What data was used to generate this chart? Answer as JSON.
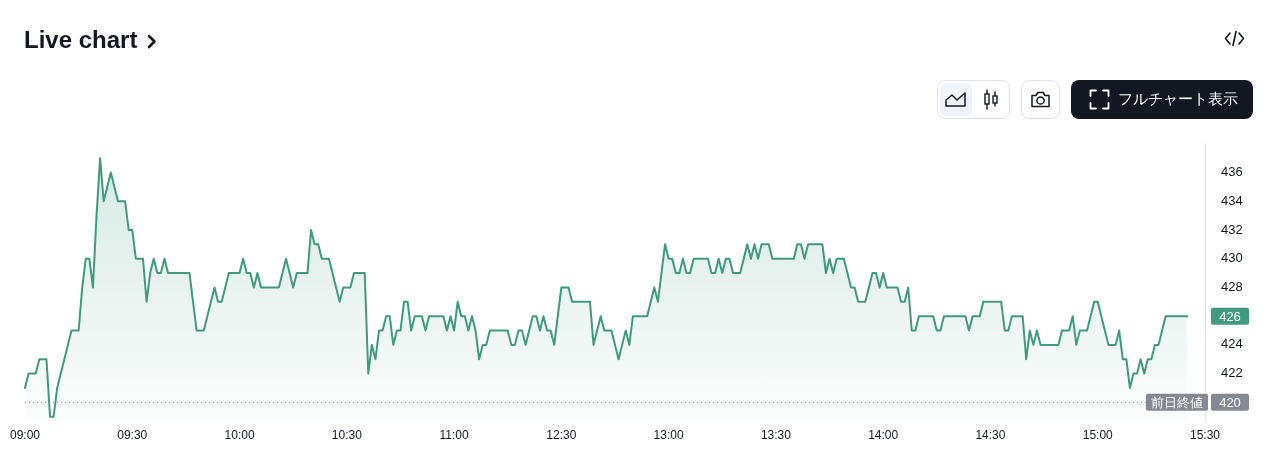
{
  "chart_data": {
    "type": "area",
    "title": "Live chart",
    "marker": "none",
    "color": "#3f9a7e",
    "categories": [
      "09:00",
      null,
      null,
      null,
      null,
      null,
      null,
      null,
      null,
      null,
      null,
      null,
      null,
      null,
      null,
      null,
      null,
      null,
      null,
      null,
      null,
      null,
      null,
      null,
      null,
      null,
      null,
      null,
      null,
      null,
      "09:30",
      null,
      null,
      null,
      null,
      null,
      null,
      null,
      null,
      null,
      null,
      null,
      null,
      null,
      null,
      null,
      null,
      null,
      null,
      null,
      null,
      null,
      null,
      null,
      null,
      null,
      null,
      null,
      null,
      null,
      "10:00",
      null,
      null,
      null,
      null,
      null,
      null,
      null,
      null,
      null,
      null,
      null,
      null,
      null,
      null,
      null,
      null,
      null,
      null,
      null,
      null,
      null,
      null,
      null,
      null,
      null,
      null,
      null,
      null,
      null,
      "10:30",
      null,
      null,
      null,
      null,
      null,
      null,
      null,
      null,
      null,
      null,
      null,
      null,
      null,
      null,
      null,
      null,
      null,
      null,
      null,
      null,
      null,
      null,
      null,
      null,
      null,
      null,
      null,
      null,
      null,
      "11:00",
      null,
      null,
      null,
      null,
      null,
      null,
      null,
      null,
      null,
      null,
      null,
      null,
      null,
      null,
      null,
      null,
      null,
      null,
      null,
      null,
      null,
      null,
      null,
      null,
      null,
      null,
      null,
      null,
      null,
      "12:30",
      null,
      null,
      null,
      null,
      null,
      null,
      null,
      null,
      null,
      null,
      null,
      null,
      null,
      null,
      null,
      null,
      null,
      null,
      null,
      null,
      null,
      null,
      null,
      null,
      null,
      null,
      null,
      null,
      null,
      "13:00",
      null,
      null,
      null,
      null,
      null,
      null,
      null,
      null,
      null,
      null,
      null,
      null,
      null,
      null,
      null,
      null,
      null,
      null,
      null,
      null,
      null,
      null,
      null,
      null,
      null,
      null,
      null,
      null,
      null,
      "13:30",
      null,
      null,
      null,
      null,
      null,
      null,
      null,
      null,
      null,
      null,
      null,
      null,
      null,
      null,
      null,
      null,
      null,
      null,
      null,
      null,
      null,
      null,
      null,
      null,
      null,
      null,
      null,
      null,
      null,
      "14:00",
      null,
      null,
      null,
      null,
      null,
      null,
      null,
      null,
      null,
      null,
      null,
      null,
      null,
      null,
      null,
      null,
      null,
      null,
      null,
      null,
      null,
      null,
      null,
      null,
      null,
      null,
      null,
      null,
      null,
      "14:30",
      null,
      null,
      null,
      null,
      null,
      null,
      null,
      null,
      null,
      null,
      null,
      null,
      null,
      null,
      null,
      null,
      null,
      null,
      null,
      null,
      null,
      null,
      null,
      null,
      null,
      null,
      null,
      null,
      null,
      "15:00",
      null,
      null,
      null,
      null,
      null,
      null,
      null,
      null,
      null,
      null,
      null,
      null,
      null,
      null,
      null,
      null,
      null,
      null,
      null,
      null,
      null,
      null,
      null,
      null,
      null,
      null,
      null,
      null,
      null,
      "15:30"
    ],
    "values": [
      421,
      422,
      422,
      422,
      423,
      423,
      423,
      419,
      419,
      421,
      422,
      423,
      424,
      425,
      425,
      425,
      428,
      430,
      430,
      428,
      433,
      437,
      434,
      435,
      436,
      435,
      434,
      434,
      434,
      432,
      432,
      430,
      430,
      430,
      427,
      429,
      430,
      429,
      429,
      430,
      429,
      429,
      429,
      429,
      429,
      429,
      429,
      427,
      425,
      425,
      425,
      426,
      427,
      428,
      427,
      427,
      428,
      429,
      429,
      429,
      429,
      430,
      429,
      429,
      428,
      429,
      428,
      428,
      428,
      428,
      428,
      428,
      429,
      430,
      429,
      428,
      429,
      429,
      429,
      429,
      432,
      431,
      431,
      430,
      430,
      430,
      429,
      428,
      427,
      428,
      428,
      428,
      429,
      429,
      429,
      429,
      422,
      424,
      423,
      425,
      425,
      426,
      426,
      424,
      425,
      425,
      427,
      427,
      425,
      426,
      426,
      426,
      425,
      426,
      426,
      426,
      426,
      426,
      425,
      426,
      425,
      427,
      426,
      426,
      425,
      426,
      425,
      423,
      424,
      424,
      425,
      425,
      425,
      425,
      425,
      425,
      424,
      424,
      425,
      425,
      424,
      425,
      426,
      426,
      425,
      426,
      425,
      425,
      424,
      426,
      428,
      428,
      428,
      427,
      427,
      427,
      427,
      427,
      427,
      424,
      425,
      426,
      425,
      425,
      425,
      424,
      423,
      424,
      425,
      424,
      426,
      426,
      426,
      426,
      426,
      427,
      428,
      427,
      429,
      431,
      430,
      430,
      429,
      429,
      430,
      429,
      429,
      430,
      430,
      430,
      430,
      430,
      429,
      429,
      430,
      429,
      430,
      430,
      429,
      429,
      429,
      430,
      431,
      430,
      431,
      430,
      431,
      431,
      431,
      430,
      430,
      430,
      430,
      430,
      430,
      430,
      431,
      431,
      430,
      431,
      431,
      431,
      431,
      431,
      429,
      430,
      429,
      430,
      430,
      430,
      429,
      428,
      428,
      427,
      427,
      427,
      428,
      429,
      429,
      428,
      429,
      428,
      428,
      428,
      428,
      427,
      427,
      428,
      425,
      425,
      426,
      426,
      426,
      426,
      426,
      425,
      425,
      426,
      426,
      426,
      426,
      426,
      426,
      426,
      425,
      426,
      426,
      426,
      427,
      427,
      427,
      427,
      427,
      427,
      425,
      425,
      426,
      426,
      426,
      426,
      423,
      425,
      424,
      425,
      424,
      424,
      424,
      424,
      424,
      424,
      425,
      425,
      425,
      426,
      424,
      425,
      425,
      425,
      426,
      427,
      427,
      426,
      425,
      424,
      424,
      424,
      425,
      423,
      423,
      421,
      422,
      422,
      423,
      422,
      423,
      423,
      424,
      424,
      425,
      426,
      426,
      426,
      426,
      426,
      426,
      426,
      null,
      null,
      null,
      null,
      null
    ],
    "ylim": [
      418.7,
      438
    ],
    "yticks": [
      420,
      422,
      424,
      428,
      430,
      432,
      434,
      436
    ],
    "ref_lines": [
      {
        "axis": "y",
        "value": 420,
        "label": "前日終値",
        "color": "#868993",
        "line_style": "dotted"
      }
    ],
    "annotations": [
      "426",
      "フルチャート表示"
    ]
  }
}
